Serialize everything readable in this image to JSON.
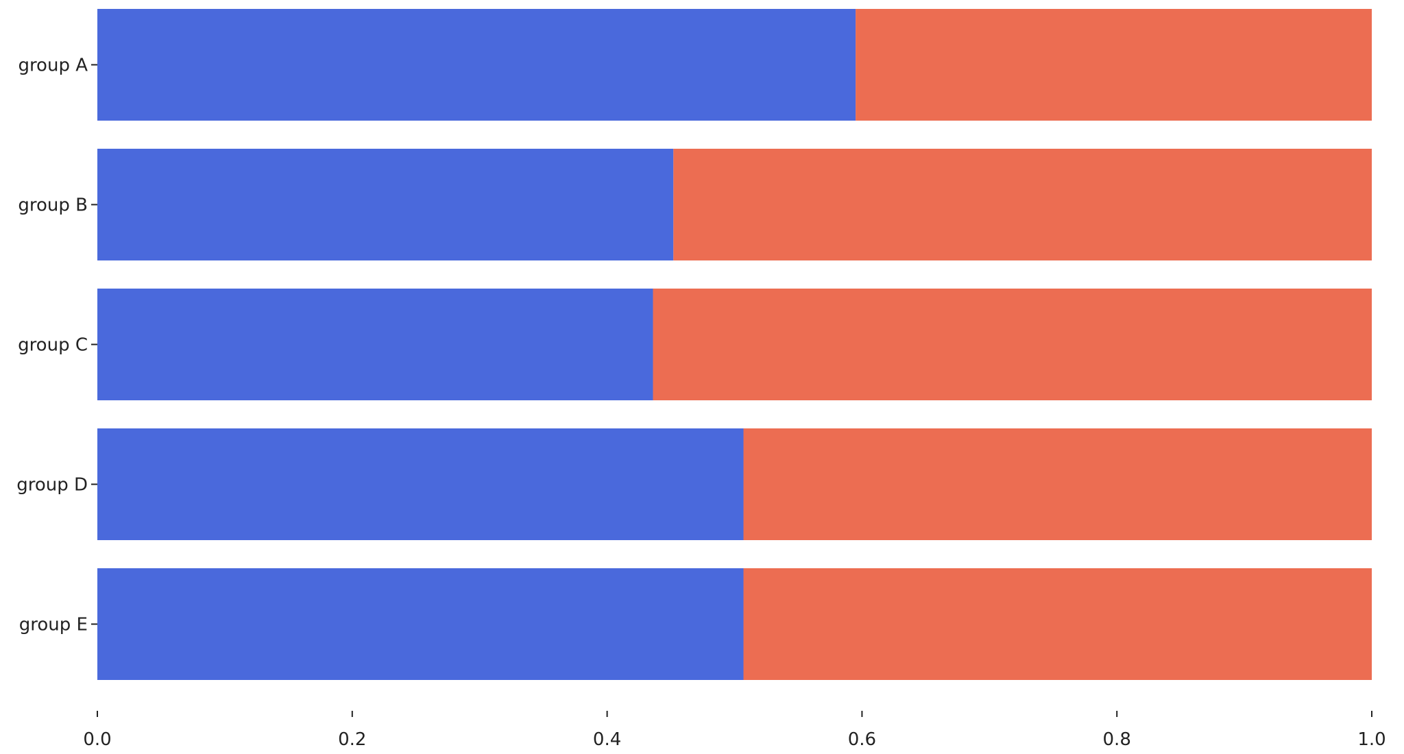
{
  "chart_data": {
    "type": "bar",
    "orientation": "horizontal",
    "stacked": true,
    "categories": [
      "group A",
      "group B",
      "group C",
      "group D",
      "group E"
    ],
    "series": [
      {
        "values": [
          0.595,
          0.452,
          0.436,
          0.507,
          0.507
        ],
        "color": "#4a69dc"
      },
      {
        "values": [
          0.405,
          0.548,
          0.564,
          0.493,
          0.493
        ],
        "color": "#ec6d52"
      }
    ],
    "xlim": [
      0,
      1
    ],
    "xticks": [
      "0.0",
      "0.2",
      "0.4",
      "0.6",
      "0.8",
      "1.0"
    ],
    "grid": false,
    "legend": "none",
    "title": "",
    "xlabel": "",
    "ylabel": ""
  }
}
